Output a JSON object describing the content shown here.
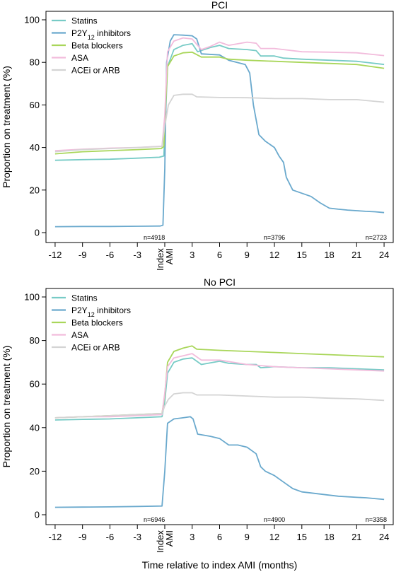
{
  "chart_data": [
    {
      "type": "line",
      "title": "PCI",
      "xlabel": "",
      "ylabel": "Proportion on treatment (%)",
      "xlim": [
        -13,
        25
      ],
      "ylim": [
        0,
        100
      ],
      "x_ticks": [
        -12,
        -9,
        -6,
        -3,
        0,
        3,
        6,
        9,
        12,
        15,
        18,
        21,
        24
      ],
      "x_tick_labels": [
        "-12",
        "-9",
        "-6",
        "-3",
        "",
        "3",
        "6",
        "9",
        "12",
        "15",
        "18",
        "21",
        "24"
      ],
      "index_label": [
        "Index",
        "AMI"
      ],
      "y_ticks": [
        0,
        20,
        40,
        60,
        80,
        100
      ],
      "grid": false,
      "legend_position": "top-left",
      "n_labels": [
        {
          "x": 0,
          "text": "n=4918"
        },
        {
          "x": 12,
          "text": "n=3796"
        },
        {
          "x": 24,
          "text": "n=2723"
        }
      ],
      "series": [
        {
          "name": "Statins",
          "color": "#77cbc6",
          "points": [
            [
              -12,
              34
            ],
            [
              -9,
              34.3
            ],
            [
              -6,
              34.5
            ],
            [
              -3,
              35
            ],
            [
              -0.6,
              35.4
            ],
            [
              -0.1,
              36
            ],
            [
              0,
              46
            ],
            [
              0.3,
              78
            ],
            [
              1,
              86
            ],
            [
              2,
              88
            ],
            [
              3,
              88.8
            ],
            [
              3.6,
              85
            ],
            [
              5,
              87
            ],
            [
              6,
              88
            ],
            [
              7,
              86.5
            ],
            [
              9,
              86
            ],
            [
              10,
              85.5
            ],
            [
              10.5,
              83
            ],
            [
              12,
              83
            ],
            [
              13,
              82
            ],
            [
              15,
              81.5
            ],
            [
              18,
              81
            ],
            [
              21,
              80.5
            ],
            [
              24,
              79
            ]
          ]
        },
        {
          "name": "P2Y12 inhibitors",
          "label_main": "P2Y",
          "label_sub": "12",
          "label_rest": " inhibitors",
          "color": "#6aa9cd",
          "points": [
            [
              -12,
              2.8
            ],
            [
              -9,
              2.9
            ],
            [
              -6,
              2.9
            ],
            [
              -3,
              3
            ],
            [
              -0.5,
              3.1
            ],
            [
              -0.2,
              3.5
            ],
            [
              0,
              30
            ],
            [
              0.2,
              80
            ],
            [
              0.6,
              90
            ],
            [
              1,
              93
            ],
            [
              2,
              92.8
            ],
            [
              3,
              92.5
            ],
            [
              3.5,
              91
            ],
            [
              4,
              84
            ],
            [
              6,
              83.5
            ],
            [
              7,
              81
            ],
            [
              8.8,
              79
            ],
            [
              9.3,
              75
            ],
            [
              9.7,
              60
            ],
            [
              10.3,
              46
            ],
            [
              11,
              43
            ],
            [
              12,
              40
            ],
            [
              12.5,
              36
            ],
            [
              13,
              33
            ],
            [
              13.3,
              26
            ],
            [
              14,
              20
            ],
            [
              15,
              18.5
            ],
            [
              16,
              17
            ],
            [
              17,
              14
            ],
            [
              18,
              11.5
            ],
            [
              19,
              11
            ],
            [
              20,
              10.6
            ],
            [
              21,
              10.3
            ],
            [
              22,
              10
            ],
            [
              23,
              9.8
            ],
            [
              24,
              9.4
            ]
          ]
        },
        {
          "name": "Beta blockers",
          "color": "#a9d65a",
          "points": [
            [
              -12,
              37
            ],
            [
              -9,
              38
            ],
            [
              -6,
              38.5
            ],
            [
              -3,
              39
            ],
            [
              -0.4,
              39.5
            ],
            [
              -0.1,
              40.5
            ],
            [
              0,
              52
            ],
            [
              0.3,
              78
            ],
            [
              1,
              83
            ],
            [
              2,
              84.5
            ],
            [
              3,
              84.8
            ],
            [
              4,
              82.5
            ],
            [
              6,
              82.5
            ],
            [
              7,
              81.5
            ],
            [
              9,
              81
            ],
            [
              12,
              80.5
            ],
            [
              15,
              80
            ],
            [
              18,
              79.5
            ],
            [
              21,
              79
            ],
            [
              24,
              77.2
            ]
          ]
        },
        {
          "name": "ASA",
          "color": "#f2bcdc",
          "points": [
            [
              -12,
              38.5
            ],
            [
              -9,
              39.2
            ],
            [
              -6,
              39.7
            ],
            [
              -3,
              40
            ],
            [
              -0.3,
              40.6
            ],
            [
              0,
              55
            ],
            [
              0.3,
              85
            ],
            [
              1,
              90
            ],
            [
              2,
              91.5
            ],
            [
              3,
              91
            ],
            [
              4,
              86
            ],
            [
              5,
              87.5
            ],
            [
              6,
              89.5
            ],
            [
              7,
              88
            ],
            [
              9,
              89.5
            ],
            [
              10,
              89
            ],
            [
              10.5,
              86.5
            ],
            [
              12,
              86.5
            ],
            [
              13,
              86
            ],
            [
              15,
              85
            ],
            [
              18,
              84.8
            ],
            [
              21,
              84.5
            ],
            [
              24,
              83.2
            ]
          ]
        },
        {
          "name": "ACEi or ARB",
          "color": "#d4d4d4",
          "points": [
            [
              -12,
              38
            ],
            [
              -9,
              39
            ],
            [
              -6,
              39.5
            ],
            [
              -3,
              40
            ],
            [
              -0.3,
              40.5
            ],
            [
              0,
              50
            ],
            [
              0.4,
              60
            ],
            [
              1,
              64.5
            ],
            [
              2,
              65
            ],
            [
              3,
              65
            ],
            [
              3.5,
              63.8
            ],
            [
              6,
              63.5
            ],
            [
              9,
              63.4
            ],
            [
              12,
              63
            ],
            [
              15,
              63
            ],
            [
              18,
              62.5
            ],
            [
              21,
              62.5
            ],
            [
              24,
              61.3
            ]
          ]
        }
      ]
    },
    {
      "type": "line",
      "title": "No PCI",
      "xlabel": "Time relative to index AMI (months)",
      "ylabel": "Proportion on treatment (%)",
      "xlim": [
        -13,
        25
      ],
      "ylim": [
        0,
        100
      ],
      "x_ticks": [
        -12,
        -9,
        -6,
        -3,
        0,
        3,
        6,
        9,
        12,
        15,
        18,
        21,
        24
      ],
      "x_tick_labels": [
        "-12",
        "-9",
        "-6",
        "-3",
        "",
        "3",
        "6",
        "9",
        "12",
        "15",
        "18",
        "21",
        "24"
      ],
      "index_label": [
        "Index",
        "AMI"
      ],
      "y_ticks": [
        0,
        20,
        40,
        60,
        80,
        100
      ],
      "grid": false,
      "legend_position": "top-left",
      "n_labels": [
        {
          "x": 0,
          "text": "n=6946"
        },
        {
          "x": 12,
          "text": "n=4900"
        },
        {
          "x": 24,
          "text": "n=3358"
        }
      ],
      "series": [
        {
          "name": "Statins",
          "color": "#77cbc6",
          "points": [
            [
              -12,
              43.5
            ],
            [
              -9,
              43.8
            ],
            [
              -6,
              44
            ],
            [
              -3,
              44.5
            ],
            [
              -0.3,
              45
            ],
            [
              0,
              52
            ],
            [
              0.3,
              65
            ],
            [
              1,
              70
            ],
            [
              2,
              71.5
            ],
            [
              3,
              72
            ],
            [
              4,
              69
            ],
            [
              6,
              70.5
            ],
            [
              7,
              69.5
            ],
            [
              9,
              69
            ],
            [
              10,
              69
            ],
            [
              10.5,
              67.5
            ],
            [
              12,
              68
            ],
            [
              15,
              67.5
            ],
            [
              18,
              67.5
            ],
            [
              21,
              67
            ],
            [
              24,
              66.5
            ]
          ]
        },
        {
          "name": "P2Y12 inhibitors",
          "label_main": "P2Y",
          "label_sub": "12",
          "label_rest": " inhibitors",
          "color": "#6aa9cd",
          "points": [
            [
              -12,
              3.4
            ],
            [
              -9,
              3.5
            ],
            [
              -6,
              3.6
            ],
            [
              -3,
              3.8
            ],
            [
              -0.3,
              4
            ],
            [
              0,
              20
            ],
            [
              0.3,
              42
            ],
            [
              1,
              44
            ],
            [
              2,
              44.5
            ],
            [
              2.8,
              45
            ],
            [
              3.1,
              44
            ],
            [
              3.6,
              37
            ],
            [
              5,
              36
            ],
            [
              6,
              35
            ],
            [
              7,
              32
            ],
            [
              8,
              32
            ],
            [
              9,
              31
            ],
            [
              10,
              28
            ],
            [
              10.5,
              22
            ],
            [
              11,
              20
            ],
            [
              12,
              18
            ],
            [
              13,
              15
            ],
            [
              14,
              12
            ],
            [
              15,
              10.5
            ],
            [
              16,
              10
            ],
            [
              18,
              9
            ],
            [
              19,
              8.5
            ],
            [
              21,
              8
            ],
            [
              22,
              7.8
            ],
            [
              24,
              7
            ]
          ]
        },
        {
          "name": "Beta blockers",
          "color": "#a9d65a",
          "points": [
            [
              -12,
              44.5
            ],
            [
              -9,
              45
            ],
            [
              -6,
              45.5
            ],
            [
              -3,
              46
            ],
            [
              -0.3,
              46.5
            ],
            [
              0,
              55
            ],
            [
              0.3,
              70
            ],
            [
              1,
              75
            ],
            [
              2,
              76.5
            ],
            [
              3,
              77.5
            ],
            [
              3.5,
              76
            ],
            [
              6,
              75.5
            ],
            [
              9,
              75
            ],
            [
              12,
              74.5
            ],
            [
              15,
              74
            ],
            [
              18,
              73.5
            ],
            [
              21,
              73
            ],
            [
              24,
              72.5
            ]
          ]
        },
        {
          "name": "ASA",
          "color": "#f2bcdc",
          "points": [
            [
              -12,
              44.5
            ],
            [
              -9,
              45
            ],
            [
              -6,
              45
            ],
            [
              -3,
              45.5
            ],
            [
              -0.3,
              46
            ],
            [
              0,
              56
            ],
            [
              0.3,
              68
            ],
            [
              1,
              72
            ],
            [
              2,
              73
            ],
            [
              3,
              74
            ],
            [
              4,
              71
            ],
            [
              6,
              71
            ],
            [
              9,
              69
            ],
            [
              12,
              68
            ],
            [
              15,
              67.5
            ],
            [
              18,
              67
            ],
            [
              21,
              66.5
            ],
            [
              24,
              66
            ]
          ]
        },
        {
          "name": "ACEi or ARB",
          "color": "#d4d4d4",
          "points": [
            [
              -12,
              44.5
            ],
            [
              -9,
              45
            ],
            [
              -6,
              45.5
            ],
            [
              -3,
              46
            ],
            [
              -0.3,
              46.5
            ],
            [
              0,
              50
            ],
            [
              0.4,
              53
            ],
            [
              1,
              55.5
            ],
            [
              2,
              56
            ],
            [
              3,
              56
            ],
            [
              3.5,
              55
            ],
            [
              6,
              55
            ],
            [
              9,
              54.5
            ],
            [
              12,
              54
            ],
            [
              15,
              54
            ],
            [
              18,
              53.5
            ],
            [
              21,
              53.2
            ],
            [
              24,
              52.5
            ]
          ]
        }
      ]
    }
  ]
}
